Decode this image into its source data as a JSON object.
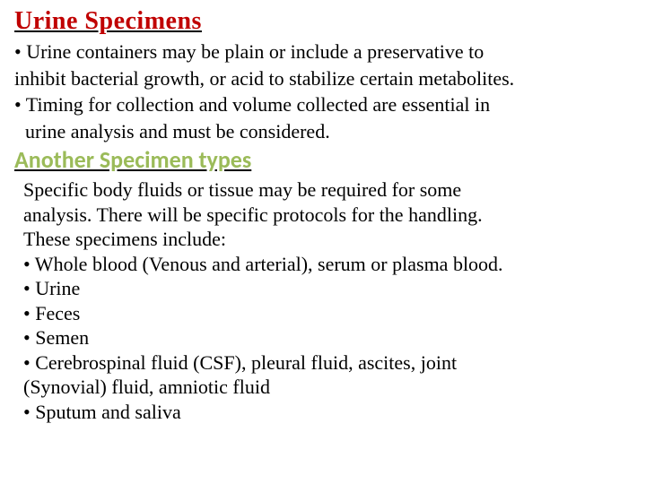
{
  "heading1": "Urine Specimens",
  "section1": {
    "bullet1_line1": "• Urine containers may be plain or include a preservative to",
    "bullet1_line2": "inhibit bacterial growth, or acid to stabilize certain metabolites.",
    "bullet2_line1": "• Timing for collection and volume collected are essential in",
    "bullet2_line2": "urine analysis and must be considered."
  },
  "heading2": "Another Specimen types",
  "section2": {
    "intro_line1": "Specific body fluids or tissue may be required for some",
    "intro_line2": "analysis. There will be specific protocols for the handling.",
    "intro_line3": "These specimens include:",
    "item1": "• Whole blood (Venous and arterial), serum or plasma blood.",
    "item2": "• Urine",
    "item3": "• Feces",
    "item4": "• Semen",
    "item5_line1": "• Cerebrospinal fluid (CSF), pleural fluid, ascites, joint",
    "item5_line2": "(Synovial) fluid, amniotic fluid",
    "item6": "• Sputum and saliva"
  },
  "colors": {
    "heading1_color": "#c00000",
    "heading2_color": "#9bbb59",
    "text_color": "#000000",
    "background": "#ffffff"
  },
  "typography": {
    "heading1_fontsize": 28,
    "heading2_fontsize": 26,
    "body_fontsize": 22,
    "heading1_font": "Georgia",
    "heading2_font": "Calibri",
    "body_font": "Georgia"
  }
}
